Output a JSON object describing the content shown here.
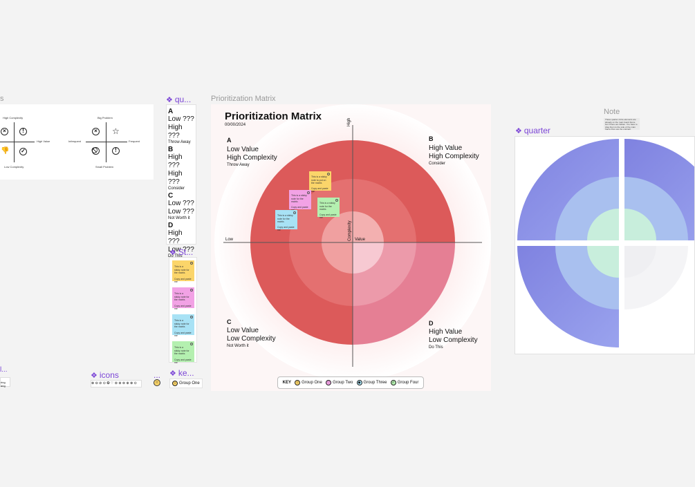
{
  "frames": {
    "left_cut": "s",
    "prioritization": "Prioritization Matrix",
    "note": "Note"
  },
  "components": {
    "quadrants": "qu...",
    "sticky": "St...",
    "icons": "icons",
    "dots": "...",
    "key": "ke...",
    "quarter": "quarter",
    "left_small": "l..."
  },
  "left_panel": {
    "high_complexity": "High Complexity",
    "low_complexity": "Low Complexity",
    "high_value": "High Value",
    "big_problem": "Big Problem",
    "small_problem": "Small Problem",
    "infrequent": "Infrequent",
    "frequent": "Frequent"
  },
  "quadrant_column": [
    {
      "letter": "A",
      "line1": "Low ???",
      "line2": "High ???",
      "sub": "Throw  Away"
    },
    {
      "letter": "B",
      "line1": "High ???",
      "line2": "High ???",
      "sub": "Consider"
    },
    {
      "letter": "C",
      "line1": "Low ???",
      "line2": "Low ???",
      "sub": "Not Worth it"
    },
    {
      "letter": "D",
      "line1": "High ???",
      "line2": "Low ???",
      "sub": "Do This"
    }
  ],
  "sticky_text": "This is a sticky note for the matrix.",
  "sticky_copy": "Copy and paste me",
  "sticky_top_text": "This is a sticky note to put on the matrix.",
  "key_group_one": "Group One",
  "icons_strip": "⊗ ⊖ ⊘ ⊙ ✪ ♡ ⊚ ⊛ ⊜ ⊕ ⊗ ⊙",
  "left_small_text": "ring ang",
  "matrix": {
    "title": "Prioritization Matrix",
    "date": "00/00/2024",
    "axis_high": "High",
    "axis_low": "Low",
    "axis_complexity": "Complexity",
    "axis_value": "Value",
    "a": {
      "letter": "A",
      "l1": "Low Value",
      "l2": "High Complexity",
      "sub": "Throw  Away"
    },
    "b": {
      "letter": "B",
      "l1": "High Value",
      "l2": "High Complexity",
      "sub": "Consider"
    },
    "c": {
      "letter": "C",
      "l1": "Low Value",
      "l2": "Low Complexity",
      "sub": "Not Worth it"
    },
    "d": {
      "letter": "D",
      "l1": "High Value",
      "l2": "Low Complexity",
      "sub": "Do This"
    },
    "key": {
      "label": "KEY",
      "items": [
        "Group One",
        "Group Two",
        "Group Three",
        "Group Four"
      ]
    }
  },
  "note_text": "These quarter circle elements are already on the main board frame but if there are hidden. You have to drag them to the side of the main frame (they are the original).",
  "colors": {
    "purple": "#7b45d6",
    "red": "#dc5a5a",
    "pink": "#e57f94",
    "yellow": "#fbd56a",
    "pink_sticky": "#f2a2e5",
    "blue_sticky": "#a8e2f5",
    "green_sticky": "#b4f0b0"
  }
}
